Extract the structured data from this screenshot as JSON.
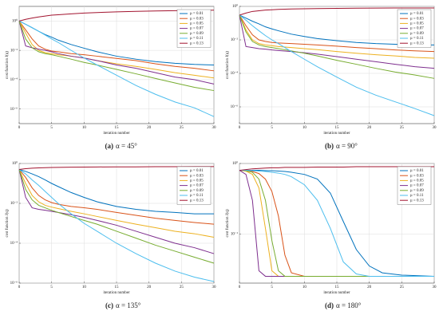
{
  "chart_data": [
    {
      "type": "line",
      "panel": "(a)",
      "caption": "α = 45°",
      "xlabel": "iteration number",
      "ylabel": "cost function J(q)",
      "log_y": true,
      "grid": true,
      "legend": "upper right",
      "x": [
        0,
        1,
        2,
        3,
        4,
        5,
        6,
        8,
        10,
        12,
        15,
        18,
        21,
        24,
        27,
        30
      ],
      "xlim": [
        0,
        30
      ],
      "xticks": [
        0,
        5,
        10,
        15,
        20,
        25,
        30
      ],
      "ylim": [
        1e-07,
        10
      ],
      "yticks": [
        {
          "value": 1,
          "label": "10⁰"
        },
        {
          "value": 0.01,
          "label": "10⁻²"
        },
        {
          "value": 0.0001,
          "label": "10⁻⁴"
        },
        {
          "value": 1e-06,
          "label": "10⁻⁶"
        }
      ],
      "series": [
        {
          "name": "μ = 0.01",
          "color": "#0072BD",
          "values": [
            1,
            0.6,
            0.35,
            0.2,
            0.12,
            0.08,
            0.05,
            0.025,
            0.014,
            0.008,
            0.004,
            0.0025,
            0.0017,
            0.0013,
            0.0011,
            0.001
          ]
        },
        {
          "name": "μ = 0.03",
          "color": "#D95319",
          "values": [
            1,
            0.25,
            0.06,
            0.02,
            0.012,
            0.009,
            0.008,
            0.006,
            0.005,
            0.004,
            0.0028,
            0.002,
            0.0012,
            0.0008,
            0.0006,
            0.0004
          ]
        },
        {
          "name": "μ = 0.05",
          "color": "#EDB120",
          "values": [
            1,
            0.15,
            0.025,
            0.01,
            0.007,
            0.006,
            0.005,
            0.004,
            0.003,
            0.002,
            0.0012,
            0.0008,
            0.0005,
            0.0003,
            0.0002,
            0.00013
          ]
        },
        {
          "name": "μ = 0.07",
          "color": "#7E2F8E",
          "values": [
            1,
            0.02,
            0.015,
            0.012,
            0.01,
            0.008,
            0.006,
            0.004,
            0.003,
            0.002,
            0.001,
            0.0006,
            0.0003,
            0.00015,
            0.0001,
            5e-05
          ]
        },
        {
          "name": "μ = 0.09",
          "color": "#77AC30",
          "values": [
            1,
            0.06,
            0.015,
            0.008,
            0.006,
            0.005,
            0.004,
            0.0025,
            0.0015,
            0.001,
            0.0005,
            0.00025,
            0.00012,
            6e-05,
            3e-05,
            1.8e-05
          ]
        },
        {
          "name": "μ = 0.11",
          "color": "#4DBEEE",
          "values": [
            1,
            0.6,
            0.35,
            0.2,
            0.11,
            0.06,
            0.035,
            0.01,
            0.003,
            0.001,
            0.0002,
            4e-05,
            1e-05,
            3e-06,
            1.2e-06,
            3e-07
          ]
        },
        {
          "name": "μ = 0.13",
          "color": "#A2142F",
          "values": [
            1,
            1.3,
            1.6,
            1.9,
            2.2,
            2.5,
            2.7,
            3.1,
            3.5,
            3.8,
            4.2,
            4.6,
            4.9,
            5.1,
            5.3,
            5.5
          ]
        }
      ]
    },
    {
      "type": "line",
      "panel": "(b)",
      "caption": "α = 90°",
      "xlabel": "iteration number",
      "ylabel": "cost function J(q)",
      "log_y": true,
      "grid": true,
      "legend": "upper right",
      "x": [
        0,
        1,
        2,
        3,
        4,
        5,
        6,
        8,
        10,
        12,
        15,
        18,
        21,
        24,
        27,
        30
      ],
      "xlim": [
        0,
        30
      ],
      "xticks": [
        0,
        5,
        10,
        15,
        20,
        25,
        30
      ],
      "ylim": [
        1e-07,
        1
      ],
      "yticks": [
        {
          "value": 1,
          "label": "10⁰"
        },
        {
          "value": 0.01,
          "label": "10⁻²"
        },
        {
          "value": 0.0001,
          "label": "10⁻⁴"
        },
        {
          "value": 1e-06,
          "label": "10⁻⁶"
        }
      ],
      "series": [
        {
          "name": "μ = 0.01",
          "color": "#0072BD",
          "values": [
            0.3,
            0.2,
            0.13,
            0.09,
            0.06,
            0.045,
            0.035,
            0.022,
            0.016,
            0.012,
            0.009,
            0.007,
            0.006,
            0.0055,
            0.005,
            0.005
          ]
        },
        {
          "name": "μ = 0.03",
          "color": "#D95319",
          "values": [
            0.3,
            0.07,
            0.02,
            0.01,
            0.008,
            0.007,
            0.0065,
            0.006,
            0.0055,
            0.005,
            0.0042,
            0.0035,
            0.003,
            0.0025,
            0.0022,
            0.002
          ]
        },
        {
          "name": "μ = 0.05",
          "color": "#EDB120",
          "values": [
            0.3,
            0.04,
            0.01,
            0.006,
            0.005,
            0.0045,
            0.004,
            0.0035,
            0.003,
            0.0026,
            0.002,
            0.0016,
            0.0013,
            0.0011,
            0.0009,
            0.0008
          ]
        },
        {
          "name": "μ = 0.07",
          "color": "#7E2F8E",
          "values": [
            0.3,
            0.004,
            0.0035,
            0.003,
            0.0028,
            0.0025,
            0.0023,
            0.002,
            0.0017,
            0.0014,
            0.001,
            0.0007,
            0.0005,
            0.00035,
            0.00025,
            0.0002
          ]
        },
        {
          "name": "μ = 0.09",
          "color": "#77AC30",
          "values": [
            0.3,
            0.03,
            0.008,
            0.005,
            0.004,
            0.0035,
            0.003,
            0.0022,
            0.0016,
            0.0011,
            0.0006,
            0.00035,
            0.0002,
            0.00012,
            8e-05,
            5e-05
          ]
        },
        {
          "name": "μ = 0.11",
          "color": "#4DBEEE",
          "values": [
            0.3,
            0.15,
            0.07,
            0.035,
            0.018,
            0.01,
            0.006,
            0.002,
            0.0007,
            0.00025,
            6e-05,
            1.5e-05,
            5e-06,
            2e-06,
            8e-07,
            3e-07
          ]
        },
        {
          "name": "μ = 0.13",
          "color": "#A2142F",
          "values": [
            0.3,
            0.4,
            0.5,
            0.55,
            0.6,
            0.63,
            0.66,
            0.7,
            0.72,
            0.74,
            0.76,
            0.78,
            0.79,
            0.8,
            0.8,
            0.8
          ]
        }
      ]
    },
    {
      "type": "line",
      "panel": "(c)",
      "caption": "α = 135°",
      "xlabel": "iteration number",
      "ylabel": "cost function J(q)",
      "log_y": true,
      "grid": true,
      "legend": "upper right",
      "x": [
        0,
        1,
        2,
        3,
        4,
        5,
        6,
        8,
        10,
        12,
        15,
        18,
        21,
        24,
        27,
        30
      ],
      "xlim": [
        0,
        30
      ],
      "xticks": [
        0,
        5,
        10,
        15,
        20,
        25,
        30
      ],
      "ylim": [
        1e-06,
        1
      ],
      "yticks": [
        {
          "value": 1,
          "label": "10⁰"
        },
        {
          "value": 0.01,
          "label": "10⁻²"
        },
        {
          "value": 0.0001,
          "label": "10⁻⁴"
        },
        {
          "value": 1e-06,
          "label": "10⁻⁶"
        }
      ],
      "series": [
        {
          "name": "μ = 0.01",
          "color": "#0072BD",
          "values": [
            0.5,
            0.4,
            0.3,
            0.22,
            0.15,
            0.1,
            0.07,
            0.035,
            0.02,
            0.012,
            0.007,
            0.005,
            0.004,
            0.0035,
            0.003,
            0.003
          ]
        },
        {
          "name": "μ = 0.03",
          "color": "#D95319",
          "values": [
            0.5,
            0.2,
            0.06,
            0.025,
            0.015,
            0.011,
            0.009,
            0.007,
            0.006,
            0.005,
            0.0035,
            0.0025,
            0.0018,
            0.0014,
            0.0011,
            0.0009
          ]
        },
        {
          "name": "μ = 0.05",
          "color": "#EDB120",
          "values": [
            0.5,
            0.1,
            0.025,
            0.012,
            0.008,
            0.0065,
            0.0055,
            0.004,
            0.003,
            0.0022,
            0.0014,
            0.0009,
            0.0006,
            0.0004,
            0.0003,
            0.0002
          ]
        },
        {
          "name": "μ = 0.07",
          "color": "#7E2F8E",
          "values": [
            0.5,
            0.02,
            0.006,
            0.005,
            0.0045,
            0.004,
            0.0035,
            0.0027,
            0.002,
            0.0014,
            0.0008,
            0.0004,
            0.0002,
            0.0001,
            6e-05,
            3e-05
          ]
        },
        {
          "name": "μ = 0.09",
          "color": "#77AC30",
          "values": [
            0.5,
            0.05,
            0.015,
            0.008,
            0.006,
            0.0045,
            0.0035,
            0.0022,
            0.0014,
            0.0009,
            0.0004,
            0.00018,
            8e-05,
            4e-05,
            2e-05,
            1e-05
          ]
        },
        {
          "name": "μ = 0.11",
          "color": "#4DBEEE",
          "values": [
            0.5,
            0.3,
            0.15,
            0.08,
            0.04,
            0.02,
            0.01,
            0.003,
            0.001,
            0.0004,
            0.0001,
            3e-05,
            1e-05,
            4e-06,
            2e-06,
            1.2e-06
          ]
        },
        {
          "name": "μ = 0.13",
          "color": "#A2142F",
          "values": [
            0.5,
            0.55,
            0.58,
            0.6,
            0.62,
            0.63,
            0.64,
            0.65,
            0.66,
            0.67,
            0.68,
            0.68,
            0.69,
            0.69,
            0.7,
            0.7
          ]
        }
      ]
    },
    {
      "type": "line",
      "panel": "(d)",
      "caption": "α = 180°",
      "xlabel": "iteration number",
      "ylabel": "cost function J(q)",
      "log_y": true,
      "grid": true,
      "legend": "upper right",
      "x": [
        0,
        1,
        2,
        3,
        4,
        5,
        6,
        7,
        8,
        10,
        12,
        14,
        16,
        18,
        20,
        22,
        25,
        30
      ],
      "xlim": [
        0,
        30
      ],
      "xticks": [
        0,
        5,
        10,
        15,
        20,
        25,
        30
      ],
      "ylim": [
        0.02,
        1
      ],
      "yticks": [
        {
          "value": 1,
          "label": "10⁰"
        },
        {
          "value": 0.1,
          "label": "10⁻¹"
        }
      ],
      "series": [
        {
          "name": "μ = 0.01",
          "color": "#0072BD",
          "values": [
            0.8,
            0.8,
            0.8,
            0.8,
            0.79,
            0.79,
            0.78,
            0.77,
            0.75,
            0.7,
            0.6,
            0.38,
            0.15,
            0.06,
            0.035,
            0.028,
            0.026,
            0.025
          ]
        },
        {
          "name": "μ = 0.03",
          "color": "#D95319",
          "values": [
            0.8,
            0.79,
            0.77,
            0.72,
            0.6,
            0.4,
            0.18,
            0.05,
            0.028,
            0.025,
            0.025,
            0.025,
            0.025,
            0.025,
            0.025,
            0.025,
            0.025,
            0.025
          ]
        },
        {
          "name": "μ = 0.05",
          "color": "#EDB120",
          "values": [
            0.8,
            0.78,
            0.7,
            0.45,
            0.12,
            0.03,
            0.025,
            0.025,
            0.025,
            0.025,
            0.025,
            0.025,
            0.025,
            0.025,
            0.025,
            0.025,
            0.025,
            0.025
          ]
        },
        {
          "name": "μ = 0.07",
          "color": "#7E2F8E",
          "values": [
            0.8,
            0.7,
            0.3,
            0.03,
            0.025,
            0.025,
            0.025,
            0.025,
            0.025,
            0.025,
            0.025,
            0.025,
            0.025,
            0.025,
            0.025,
            0.025,
            0.025,
            0.025
          ]
        },
        {
          "name": "μ = 0.09",
          "color": "#77AC30",
          "values": [
            0.8,
            0.79,
            0.75,
            0.6,
            0.3,
            0.08,
            0.03,
            0.025,
            0.025,
            0.025,
            0.025,
            0.025,
            0.025,
            0.025,
            0.025,
            0.025,
            0.025,
            0.025
          ]
        },
        {
          "name": "μ = 0.11",
          "color": "#4DBEEE",
          "values": [
            0.8,
            0.8,
            0.79,
            0.78,
            0.77,
            0.75,
            0.73,
            0.7,
            0.65,
            0.5,
            0.3,
            0.12,
            0.04,
            0.027,
            0.025,
            0.025,
            0.025,
            0.025
          ]
        },
        {
          "name": "μ = 0.13",
          "color": "#A2142F",
          "values": [
            0.8,
            0.82,
            0.84,
            0.85,
            0.86,
            0.87,
            0.87,
            0.88,
            0.88,
            0.88,
            0.89,
            0.89,
            0.89,
            0.9,
            0.9,
            0.9,
            0.9,
            0.9
          ]
        }
      ]
    }
  ]
}
